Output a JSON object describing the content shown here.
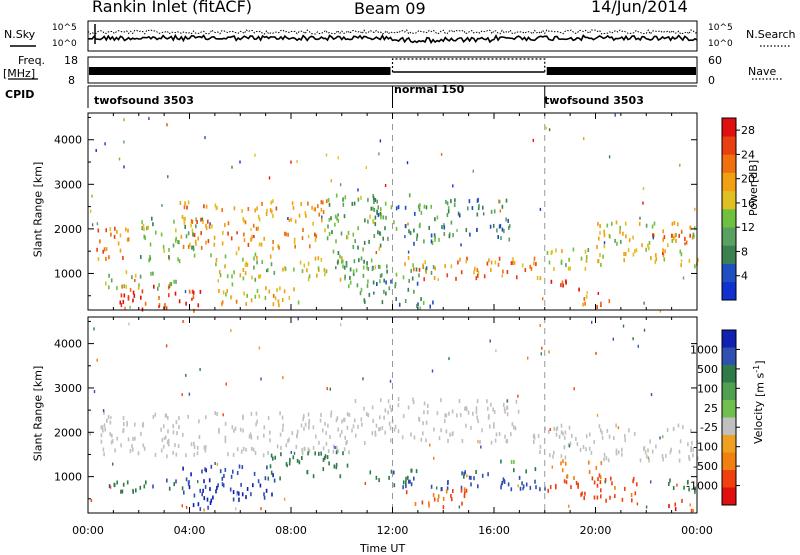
{
  "header": {
    "station": "Rankin Inlet (fitACF)",
    "beam": "Beam 09",
    "date": "14/Jun/2014"
  },
  "top_panels": {
    "nsky_label": "N.Sky",
    "nsky_tick_high": "10^5",
    "nsky_tick_low": "10^0",
    "nsearch_label": "N.Search",
    "nsearch_tick_high": "10^5",
    "nsearch_tick_low": "10^0",
    "freq_label": "Freq.",
    "freq_unit": "[MHz]",
    "freq_tick_high": "18",
    "freq_tick_low": "8",
    "nave_label": "Nave",
    "nave_tick_high": "60",
    "nave_tick_low": "0",
    "cpid_label": "CPID",
    "cpid_segments": [
      {
        "label": "twofsound 3503",
        "start_hour": 0,
        "end_hour": 12
      },
      {
        "label": "normal 150",
        "start_hour": 12,
        "end_hour": 18
      },
      {
        "label": "twofsound 3503",
        "start_hour": 18,
        "end_hour": 24
      }
    ]
  },
  "colors": {
    "power": [
      "#1030d0",
      "#2050c0",
      "#3a8050",
      "#5aa060",
      "#70c040",
      "#e0c020",
      "#f0a010",
      "#f07010",
      "#e84010",
      "#e01010"
    ],
    "velocity": [
      "#1020b0",
      "#3050b0",
      "#2e7a48",
      "#50a050",
      "#70c050",
      "#c0c0c0",
      "#f0a020",
      "#f08010",
      "#f04010",
      "#e01010"
    ]
  },
  "chart_data": [
    {
      "type": "heatmap",
      "title": "Power",
      "ylabel": "Slant Range [km]",
      "xlabel": "",
      "xlim": [
        0,
        24
      ],
      "ylim": [
        180,
        4600
      ],
      "x_ticks": [
        "00:00",
        "04:00",
        "08:00",
        "12:00",
        "16:00",
        "20:00",
        "00:00"
      ],
      "y_ticks": [
        1000,
        2000,
        3000,
        4000
      ],
      "colorbar": {
        "label": "Power",
        "unit": "[dB]",
        "ticks": [
          "4",
          "8",
          "12",
          "16",
          "20",
          "24",
          "28"
        ],
        "range": [
          0,
          30
        ]
      },
      "blobs": [
        {
          "x0": 0.0,
          "x1": 1.6,
          "y0": 1300,
          "y1": 2100,
          "v": 22
        },
        {
          "x0": 1.2,
          "x1": 4.5,
          "y0": 200,
          "y1": 800,
          "v": 26
        },
        {
          "x0": 0.6,
          "x1": 3.5,
          "y0": 700,
          "y1": 1100,
          "v": 14
        },
        {
          "x0": 2.0,
          "x1": 4.3,
          "y0": 1300,
          "y1": 2300,
          "v": 12
        },
        {
          "x0": 3.6,
          "x1": 9.4,
          "y0": 1600,
          "y1": 2700,
          "v": 20
        },
        {
          "x0": 5.0,
          "x1": 8.4,
          "y0": 300,
          "y1": 800,
          "v": 17
        },
        {
          "x0": 4.8,
          "x1": 10.0,
          "y0": 900,
          "y1": 1500,
          "v": 16
        },
        {
          "x0": 9.4,
          "x1": 11.6,
          "y0": 1100,
          "y1": 2800,
          "v": 11
        },
        {
          "x0": 10.0,
          "x1": 13.6,
          "y0": 300,
          "y1": 1300,
          "v": 9
        },
        {
          "x0": 11.0,
          "x1": 14.2,
          "y0": 1700,
          "y1": 2800,
          "v": 10
        },
        {
          "x0": 12.4,
          "x1": 17.8,
          "y0": 900,
          "y1": 1400,
          "v": 22
        },
        {
          "x0": 14.0,
          "x1": 16.6,
          "y0": 1800,
          "y1": 2700,
          "v": 7
        },
        {
          "x0": 18.2,
          "x1": 19.4,
          "y0": 600,
          "y1": 900,
          "v": 27
        },
        {
          "x0": 19.4,
          "x1": 20.8,
          "y0": 250,
          "y1": 550,
          "v": 20
        },
        {
          "x0": 18.0,
          "x1": 20.5,
          "y0": 1100,
          "y1": 1600,
          "v": 14
        },
        {
          "x0": 20.0,
          "x1": 24.0,
          "y0": 1200,
          "y1": 2200,
          "v": 16
        },
        {
          "x0": 22.0,
          "x1": 24.0,
          "y0": 1700,
          "y1": 2000,
          "v": 23
        }
      ]
    },
    {
      "type": "heatmap",
      "title": "Velocity",
      "ylabel": "Slant Range [km]",
      "xlabel": "Time UT",
      "xlim": [
        0,
        24
      ],
      "ylim": [
        180,
        4600
      ],
      "x_ticks": [
        "00:00",
        "04:00",
        "08:00",
        "12:00",
        "16:00",
        "20:00",
        "00:00"
      ],
      "y_ticks": [
        1000,
        2000,
        3000,
        4000
      ],
      "colorbar": {
        "label": "Velocity",
        "unit": "[m s^-1]",
        "ticks": [
          "1000",
          "500",
          "100",
          "25",
          "-25",
          "-100",
          "-500",
          "-1000"
        ],
        "range": [
          -1200,
          1200
        ]
      },
      "blobs": [
        {
          "x0": 0.0,
          "x1": 10.5,
          "y0": 1500,
          "y1": 2500,
          "v": 0
        },
        {
          "x0": 10.5,
          "x1": 17.0,
          "y0": 1800,
          "y1": 2800,
          "v": 0
        },
        {
          "x0": 17.5,
          "x1": 24.0,
          "y0": 1400,
          "y1": 2200,
          "v": 0
        },
        {
          "x0": 0.6,
          "x1": 4.0,
          "y0": 700,
          "y1": 1000,
          "v": 250
        },
        {
          "x0": 3.6,
          "x1": 7.4,
          "y0": 500,
          "y1": 1300,
          "v": 600
        },
        {
          "x0": 4.0,
          "x1": 5.2,
          "y0": 300,
          "y1": 800,
          "v": 1050
        },
        {
          "x0": 7.0,
          "x1": 10.2,
          "y0": 1000,
          "y1": 1600,
          "v": 140
        },
        {
          "x0": 10.8,
          "x1": 13.0,
          "y0": 900,
          "y1": 1200,
          "v": 160
        },
        {
          "x0": 12.0,
          "x1": 18.0,
          "y0": 750,
          "y1": 1150,
          "v": 420
        },
        {
          "x0": 12.4,
          "x1": 15.0,
          "y0": 350,
          "y1": 800,
          "v": -350
        },
        {
          "x0": 16.2,
          "x1": 17.6,
          "y0": 1150,
          "y1": 1400,
          "v": 90
        },
        {
          "x0": 18.0,
          "x1": 21.6,
          "y0": 500,
          "y1": 1100,
          "v": -420
        },
        {
          "x0": 18.6,
          "x1": 20.2,
          "y0": 1000,
          "y1": 1400,
          "v": -120
        },
        {
          "x0": 22.4,
          "x1": 24.0,
          "y0": 700,
          "y1": 1000,
          "v": 110
        },
        {
          "x0": 22.8,
          "x1": 24.0,
          "y0": 250,
          "y1": 500,
          "v": -650
        }
      ]
    }
  ]
}
